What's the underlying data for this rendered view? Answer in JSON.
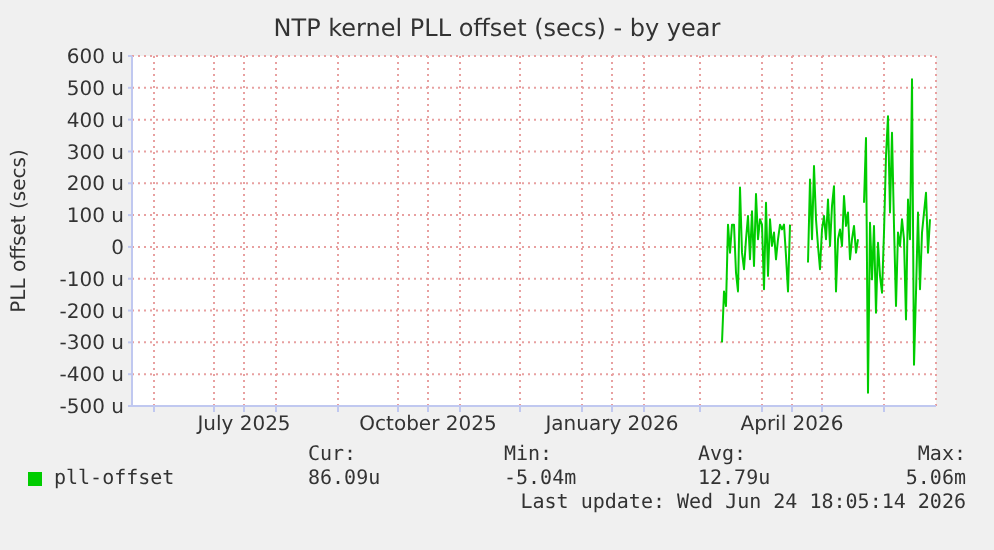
{
  "chart_data": {
    "type": "line",
    "title": "NTP kernel PLL offset (secs) - by year",
    "ylabel": "PLL offset (secs)",
    "x": [
      "2026-03-12",
      "2026-03-13",
      "2026-03-14",
      "2026-03-15",
      "2026-03-16",
      "2026-03-17",
      "2026-03-18",
      "2026-03-19",
      "2026-03-20",
      "2026-03-21",
      "2026-03-22",
      "2026-03-23",
      "2026-03-24",
      "2026-03-25",
      "2026-03-26",
      "2026-03-27",
      "2026-03-28",
      "2026-03-29",
      "2026-03-30",
      "2026-03-31",
      "2026-04-01",
      "2026-04-02",
      "2026-04-03",
      "2026-04-04",
      "2026-04-05",
      "2026-04-06",
      "2026-04-07",
      "2026-04-08",
      "2026-04-09",
      "2026-04-10",
      "2026-04-11",
      "2026-04-12",
      "2026-04-13",
      "2026-04-14",
      "2026-04-15",
      "2026-04-20",
      "2026-04-24",
      "2026-04-25",
      "2026-04-26",
      "2026-04-27",
      "2026-04-28",
      "2026-04-29",
      "2026-04-30",
      "2026-05-01",
      "2026-05-02",
      "2026-05-03",
      "2026-05-04",
      "2026-05-05",
      "2026-05-06",
      "2026-05-07",
      "2026-05-08",
      "2026-05-09",
      "2026-05-10",
      "2026-05-11",
      "2026-05-12",
      "2026-05-13",
      "2026-05-14",
      "2026-05-15",
      "2026-05-16",
      "2026-05-17",
      "2026-05-18",
      "2026-05-19",
      "2026-05-20",
      "2026-05-22",
      "2026-05-23",
      "2026-05-24",
      "2026-05-25",
      "2026-05-26",
      "2026-05-27",
      "2026-05-28",
      "2026-05-29",
      "2026-05-30",
      "2026-05-31",
      "2026-06-01",
      "2026-06-02",
      "2026-06-03",
      "2026-06-04",
      "2026-06-05",
      "2026-06-06",
      "2026-06-07",
      "2026-06-08",
      "2026-06-09",
      "2026-06-10",
      "2026-06-11",
      "2026-06-12",
      "2026-06-13",
      "2026-06-14",
      "2026-06-15",
      "2026-06-16",
      "2026-06-17",
      "2026-06-18",
      "2026-06-19",
      "2026-06-20",
      "2026-06-21",
      "2026-06-22",
      "2026-06-23",
      "2026-06-24"
    ],
    "series": [
      {
        "name": "pll-offset",
        "color": "#00cc00",
        "values": [
          -300,
          -140,
          -186,
          70,
          -18,
          70,
          70,
          -81,
          -140,
          187,
          -18,
          -70,
          24,
          97,
          -39,
          112,
          -60,
          166,
          24,
          87,
          70,
          -133,
          139,
          -91,
          87,
          3,
          45,
          -39,
          24,
          70,
          55,
          70,
          -28,
          -140,
          70,
          null,
          -49,
          212,
          24,
          254,
          87,
          3,
          -70,
          55,
          97,
          24,
          149,
          3,
          129,
          191,
          -140,
          24,
          55,
          3,
          160,
          66,
          108,
          -39,
          24,
          66,
          -18,
          24,
          null,
          139,
          342,
          -458,
          76,
          -102,
          66,
          -207,
          13,
          -91,
          -144,
          45,
          286,
          411,
          108,
          359,
          66,
          -186,
          45,
          3,
          87,
          24,
          -228,
          149,
          24,
          527,
          -370,
          -144,
          108,
          -133,
          45,
          108,
          170,
          -18,
          87
        ]
      }
    ],
    "xlim": [
      "2025-05-21",
      "2026-06-27"
    ],
    "xticks": [
      {
        "value": "2025-06-01",
        "label": null
      },
      {
        "value": "2025-07-01",
        "label": null
      },
      {
        "value": "2025-07-16",
        "label": "July 2025"
      },
      {
        "value": "2025-08-01",
        "label": null
      },
      {
        "value": "2025-09-01",
        "label": null
      },
      {
        "value": "2025-10-01",
        "label": null
      },
      {
        "value": "2025-10-16",
        "label": "October 2025"
      },
      {
        "value": "2025-11-01",
        "label": null
      },
      {
        "value": "2025-12-01",
        "label": null
      },
      {
        "value": "2026-01-01",
        "label": null
      },
      {
        "value": "2026-01-16",
        "label": "January 2026"
      },
      {
        "value": "2026-02-01",
        "label": null
      },
      {
        "value": "2026-03-01",
        "label": null
      },
      {
        "value": "2026-04-01",
        "label": null
      },
      {
        "value": "2026-04-16",
        "label": "April 2026"
      },
      {
        "value": "2026-05-01",
        "label": null
      },
      {
        "value": "2026-06-01",
        "label": null
      }
    ],
    "ylim": [
      -500,
      600
    ],
    "yticks": [
      {
        "value": -500,
        "label": "-500 u"
      },
      {
        "value": -400,
        "label": "-400 u"
      },
      {
        "value": -300,
        "label": "-300 u"
      },
      {
        "value": -200,
        "label": "-200 u"
      },
      {
        "value": -100,
        "label": "-100 u"
      },
      0,
      {
        "value": 100,
        "label": "100 u"
      },
      {
        "value": 200,
        "label": "200 u"
      },
      {
        "value": 300,
        "label": "300 u"
      },
      {
        "value": 400,
        "label": "400 u"
      },
      {
        "value": 500,
        "label": "500 u"
      },
      {
        "value": 600,
        "label": "600 u"
      }
    ],
    "grid": true,
    "legend": "bottom",
    "marker": "none",
    "line_style": "solid",
    "annotations": [
      "Cur:",
      "Min:",
      "Avg:",
      "Max:",
      "86.09u",
      "-5.04m",
      "12.79u",
      "5.06m",
      "Last update: Wed Jun 24 18:05:14 2026"
    ]
  }
}
